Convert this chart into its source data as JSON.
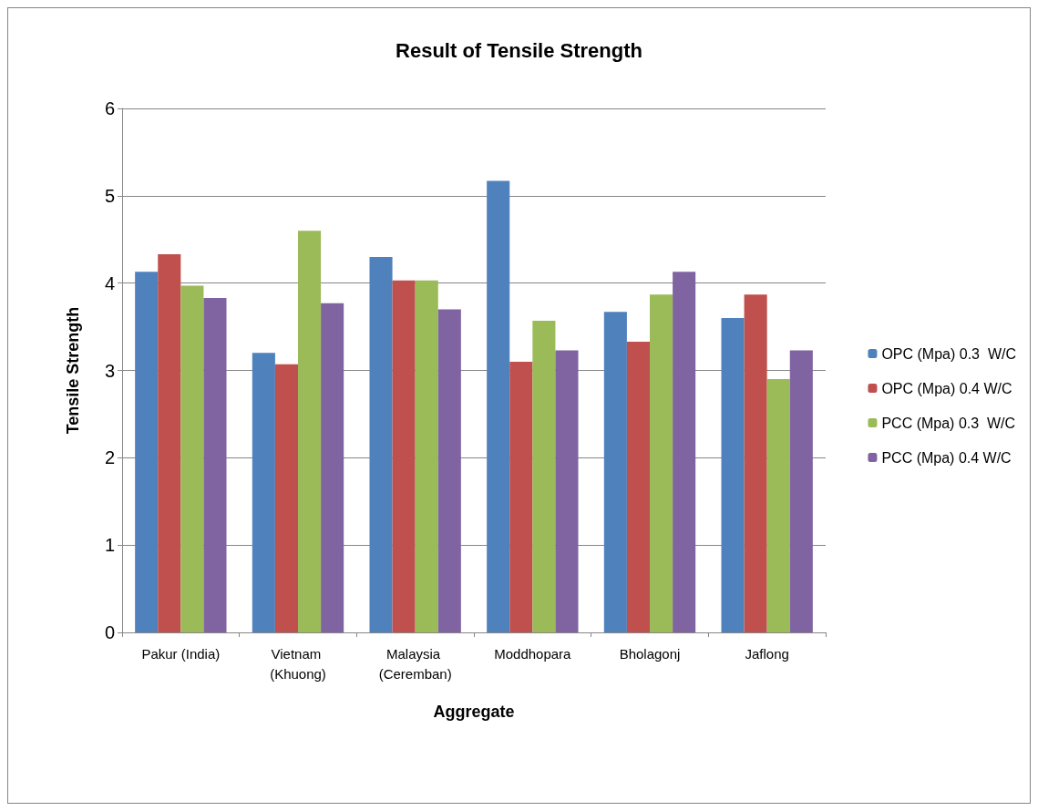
{
  "chart_data": {
    "type": "bar",
    "title": "Result of Tensile Strength",
    "xlabel": "Aggregate",
    "ylabel": "Tensile Strength",
    "categories": [
      "Pakur (India)",
      "Vietnam (Khuong)",
      "Malaysia (Ceremban)",
      "Moddhopara",
      "Bholagonj",
      "Jaflong"
    ],
    "series": [
      {
        "name": "OPC (Mpa) 0.3  W/C",
        "color": "#4f81bd",
        "values": [
          4.13,
          3.2,
          4.3,
          5.17,
          3.67,
          3.6
        ]
      },
      {
        "name": "OPC (Mpa) 0.4 W/C",
        "color": "#c0504d",
        "values": [
          4.33,
          3.07,
          4.03,
          3.1,
          3.33,
          3.87
        ]
      },
      {
        "name": "PCC (Mpa) 0.3  W/C",
        "color": "#9bbb59",
        "values": [
          3.97,
          4.6,
          4.03,
          3.57,
          3.87,
          2.9
        ]
      },
      {
        "name": "PCC (Mpa) 0.4 W/C",
        "color": "#8064a2",
        "values": [
          3.83,
          3.77,
          3.7,
          3.23,
          4.13,
          3.23
        ]
      }
    ],
    "ylim": [
      0,
      6
    ],
    "yticks": [
      0,
      1,
      2,
      3,
      4,
      5,
      6
    ],
    "grid": "y",
    "legend": "right"
  }
}
